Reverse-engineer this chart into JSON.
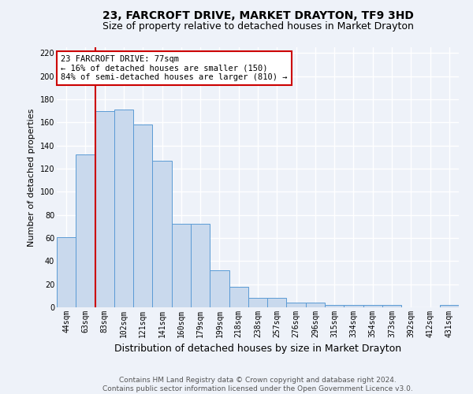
{
  "title": "23, FARCROFT DRIVE, MARKET DRAYTON, TF9 3HD",
  "subtitle": "Size of property relative to detached houses in Market Drayton",
  "xlabel": "Distribution of detached houses by size in Market Drayton",
  "ylabel": "Number of detached properties",
  "categories": [
    "44sqm",
    "63sqm",
    "83sqm",
    "102sqm",
    "121sqm",
    "141sqm",
    "160sqm",
    "179sqm",
    "199sqm",
    "218sqm",
    "238sqm",
    "257sqm",
    "276sqm",
    "296sqm",
    "315sqm",
    "334sqm",
    "354sqm",
    "373sqm",
    "392sqm",
    "412sqm",
    "431sqm"
  ],
  "values": [
    61,
    132,
    170,
    171,
    158,
    127,
    72,
    72,
    32,
    18,
    8,
    8,
    4,
    4,
    2,
    2,
    2,
    2,
    0,
    0,
    2
  ],
  "bar_color": "#c9d9ed",
  "bar_edge_color": "#5b9bd5",
  "annotation_title": "23 FARCROFT DRIVE: 77sqm",
  "annotation_line2": "← 16% of detached houses are smaller (150)",
  "annotation_line3": "84% of semi-detached houses are larger (810) →",
  "annotation_box_color": "#ffffff",
  "annotation_box_edge_color": "#cc0000",
  "vline_color": "#cc0000",
  "vline_x": 1.5,
  "footer_line1": "Contains HM Land Registry data © Crown copyright and database right 2024.",
  "footer_line2": "Contains public sector information licensed under the Open Government Licence v3.0.",
  "ylim": [
    0,
    225
  ],
  "yticks": [
    0,
    20,
    40,
    60,
    80,
    100,
    120,
    140,
    160,
    180,
    200,
    220
  ],
  "background_color": "#eef2f9",
  "grid_color": "#ffffff",
  "title_fontsize": 10,
  "subtitle_fontsize": 9,
  "xlabel_fontsize": 9,
  "ylabel_fontsize": 8,
  "tick_fontsize": 7,
  "annotation_fontsize": 7.5,
  "footer_fontsize": 6.5
}
